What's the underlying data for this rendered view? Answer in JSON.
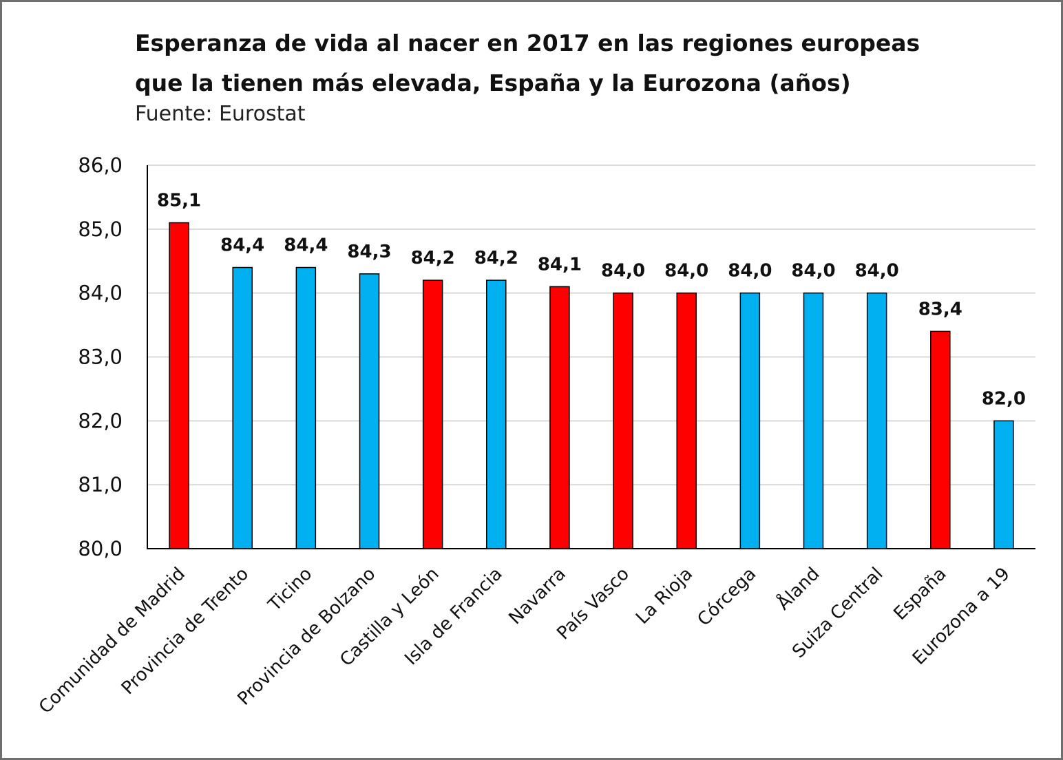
{
  "chart_data": {
    "type": "bar",
    "title_line1": "Esperanza de vida al nacer en 2017 en las regiones europeas",
    "title_line2": "que la tienen más elevada, España y la Eurozona (años)",
    "subtitle": "Fuente: Eurostat",
    "categories": [
      "Comunidad de Madrid",
      "Provincia de Trento",
      "Ticino",
      "Provincia de Bolzano",
      "Castilla y León",
      "Isla de Francia",
      "Navarra",
      "País Vasco",
      "La Rioja",
      "Córcega",
      "Åland",
      "Suiza Central",
      "España",
      "Eurozona a 19"
    ],
    "values": [
      85.1,
      84.4,
      84.4,
      84.3,
      84.2,
      84.2,
      84.1,
      84.0,
      84.0,
      84.0,
      84.0,
      84.0,
      83.4,
      82.0
    ],
    "value_labels": [
      "85,1",
      "84,4",
      "84,4",
      "84,3",
      "84,2",
      "84,2",
      "84,1",
      "84,0",
      "84,0",
      "84,0",
      "84,0",
      "84,0",
      "83,4",
      "82,0"
    ],
    "bar_colors": [
      "#ff0000",
      "#00b0f0",
      "#00b0f0",
      "#00b0f0",
      "#ff0000",
      "#00b0f0",
      "#ff0000",
      "#ff0000",
      "#ff0000",
      "#00b0f0",
      "#00b0f0",
      "#00b0f0",
      "#ff0000",
      "#00b0f0"
    ],
    "ylim": [
      80,
      86
    ],
    "yticks": [
      "80,0",
      "81,0",
      "82,0",
      "83,0",
      "84,0",
      "85,0",
      "86,0"
    ],
    "grid": true,
    "legend": "none"
  }
}
